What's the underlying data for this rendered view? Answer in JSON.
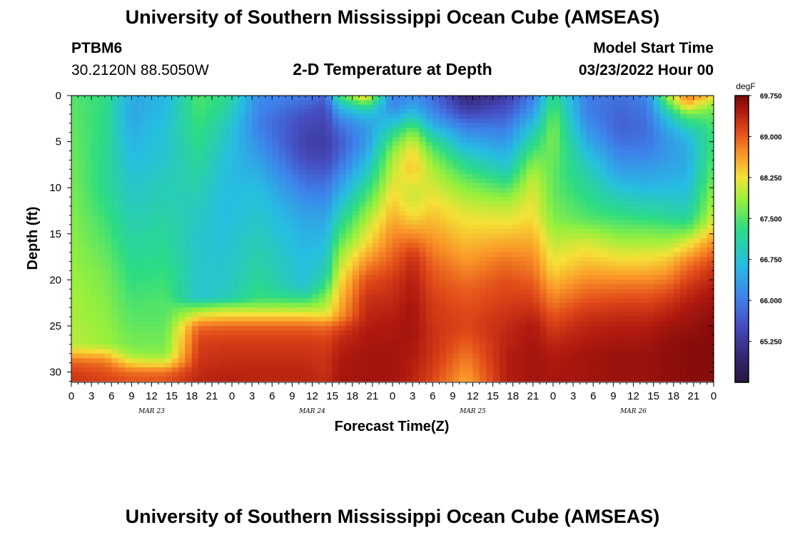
{
  "titles": {
    "main": "University of Southern Mississippi Ocean Cube (AMSEAS)",
    "repeat": "University of Southern Mississippi Ocean Cube (AMSEAS)"
  },
  "station": {
    "id": "PTBM6",
    "coords": "30.2120N  88.5050W"
  },
  "plot_title": "2-D Temperature at Depth",
  "model_start": {
    "label": "Model Start Time",
    "value": "03/23/2022 Hour 00"
  },
  "chart_data": {
    "type": "heatmap",
    "title": "2-D Temperature at Depth",
    "xlabel": "Forecast Time(Z)",
    "ylabel": "Depth (ft)",
    "x_hours": [
      0,
      96
    ],
    "x_tick_labels": [
      "0",
      "3",
      "6",
      "9",
      "12",
      "15",
      "18",
      "21",
      "0",
      "3",
      "6",
      "9",
      "12",
      "15",
      "18",
      "21",
      "0",
      "3",
      "6",
      "9",
      "12",
      "15",
      "18",
      "21",
      "0",
      "3",
      "6",
      "9",
      "12",
      "15",
      "18",
      "21",
      "0"
    ],
    "date_labels": [
      {
        "label": "MAR 23",
        "hour": 12
      },
      {
        "label": "MAR 24",
        "hour": 36
      },
      {
        "label": "MAR 25",
        "hour": 60
      },
      {
        "label": "MAR 26",
        "hour": 84
      }
    ],
    "ylim": [
      0,
      31
    ],
    "y_ticks": [
      0,
      5,
      10,
      15,
      20,
      25,
      30
    ],
    "colorbar": {
      "unit": "degF",
      "range": [
        64.5,
        69.75
      ],
      "tick_values": [
        69.75,
        69.0,
        68.25,
        67.5,
        66.75,
        66.0,
        65.25
      ],
      "tick_labels": [
        "69.750",
        "69.000",
        "68.250",
        "67.500",
        "66.750",
        "66.000",
        "65.250"
      ]
    },
    "depth_levels_ft": [
      0,
      1,
      2,
      3,
      4,
      5,
      6,
      7,
      8,
      9,
      10,
      11,
      12,
      13,
      14,
      15,
      16,
      17,
      18,
      19,
      20,
      21,
      22,
      23,
      24,
      25,
      26,
      27,
      28,
      29,
      30,
      31
    ],
    "profiles": [
      {
        "hour": 0,
        "temps": [
          67.5,
          67.55,
          67.6,
          67.6,
          67.62,
          67.65,
          67.65,
          67.68,
          67.7,
          67.7,
          67.72,
          67.75,
          67.75,
          67.78,
          67.8,
          67.8,
          67.82,
          67.85,
          67.85,
          67.88,
          67.9,
          67.9,
          67.92,
          67.95,
          67.95,
          67.98,
          68.0,
          68.0,
          68.5,
          69.0,
          69.2,
          69.3
        ]
      },
      {
        "hour": 5,
        "temps": [
          67.35,
          67.35,
          67.3,
          67.3,
          67.3,
          67.28,
          67.25,
          67.25,
          67.25,
          67.25,
          67.25,
          67.3,
          67.35,
          67.4,
          67.45,
          67.5,
          67.55,
          67.6,
          67.65,
          67.7,
          67.72,
          67.75,
          67.78,
          67.8,
          67.82,
          67.85,
          67.88,
          67.9,
          68.4,
          68.9,
          69.1,
          69.2
        ]
      },
      {
        "hour": 9,
        "temps": [
          66.5,
          66.45,
          66.45,
          66.5,
          66.55,
          66.6,
          66.65,
          66.7,
          66.75,
          66.8,
          66.85,
          66.9,
          66.95,
          67.0,
          67.05,
          67.1,
          67.15,
          67.2,
          67.25,
          67.3,
          67.35,
          67.4,
          67.45,
          67.5,
          67.55,
          67.6,
          67.65,
          67.7,
          67.85,
          68.3,
          68.9,
          69.1
        ]
      },
      {
        "hour": 14,
        "temps": [
          66.6,
          66.65,
          66.7,
          66.75,
          66.8,
          66.8,
          66.82,
          66.85,
          66.9,
          66.95,
          67.0,
          67.0,
          67.05,
          67.1,
          67.15,
          67.2,
          67.2,
          67.25,
          67.3,
          67.35,
          67.4,
          67.45,
          67.5,
          67.55,
          67.55,
          67.6,
          67.65,
          67.7,
          67.8,
          68.2,
          68.9,
          69.1
        ]
      },
      {
        "hour": 19,
        "temps": [
          67.5,
          67.5,
          67.45,
          67.4,
          67.35,
          67.3,
          67.25,
          67.2,
          67.15,
          67.1,
          67.05,
          67.0,
          66.95,
          66.9,
          66.9,
          66.85,
          66.85,
          66.85,
          66.85,
          66.85,
          66.85,
          66.85,
          66.85,
          67.7,
          68.3,
          68.9,
          69.1,
          69.2,
          69.25,
          69.3,
          69.35,
          69.4
        ]
      },
      {
        "hour": 23,
        "temps": [
          67.3,
          67.2,
          67.1,
          67.0,
          66.9,
          66.85,
          66.8,
          66.75,
          66.72,
          66.7,
          66.7,
          66.7,
          66.7,
          66.7,
          66.72,
          66.75,
          66.78,
          66.8,
          66.82,
          66.85,
          66.88,
          66.9,
          66.95,
          67.9,
          68.4,
          68.95,
          69.15,
          69.25,
          69.3,
          69.35,
          69.4,
          69.45
        ]
      },
      {
        "hour": 28,
        "temps": [
          66.2,
          66.15,
          66.1,
          66.05,
          66.1,
          66.2,
          66.3,
          66.4,
          66.5,
          66.6,
          66.7,
          66.75,
          66.8,
          66.85,
          66.9,
          66.95,
          67.0,
          67.05,
          67.1,
          67.15,
          67.2,
          67.3,
          67.4,
          67.9,
          68.4,
          68.95,
          69.15,
          69.25,
          69.3,
          69.35,
          69.4,
          69.4
        ]
      },
      {
        "hour": 35,
        "temps": [
          66.0,
          65.8,
          65.6,
          65.5,
          65.45,
          65.4,
          65.45,
          65.55,
          65.7,
          65.85,
          66.0,
          66.15,
          66.3,
          66.4,
          66.5,
          66.55,
          66.6,
          66.65,
          66.7,
          66.72,
          66.75,
          66.9,
          67.3,
          67.9,
          68.4,
          68.95,
          69.15,
          69.25,
          69.3,
          69.35,
          69.4,
          69.4
        ]
      },
      {
        "hour": 38,
        "temps": [
          65.8,
          65.6,
          65.5,
          65.45,
          65.4,
          65.35,
          65.4,
          65.5,
          65.65,
          65.8,
          65.95,
          66.1,
          66.25,
          66.4,
          66.5,
          66.6,
          66.7,
          66.8,
          66.9,
          67.0,
          67.2,
          67.5,
          67.8,
          68.0,
          68.3,
          68.9,
          69.1,
          69.2,
          69.25,
          69.3,
          69.3,
          69.35
        ]
      },
      {
        "hour": 40,
        "temps": [
          67.4,
          66.8,
          66.3,
          66.0,
          65.8,
          65.7,
          65.75,
          65.85,
          66.0,
          66.2,
          66.4,
          66.6,
          66.8,
          67.0,
          67.2,
          67.4,
          67.6,
          67.8,
          67.95,
          68.1,
          68.25,
          68.35,
          68.45,
          68.55,
          68.7,
          69.1,
          69.3,
          69.4,
          69.45,
          69.5,
          69.5,
          69.55
        ]
      },
      {
        "hour": 44,
        "temps": [
          68.5,
          67.5,
          66.8,
          66.4,
          66.3,
          66.3,
          66.4,
          66.6,
          66.8,
          67.0,
          67.25,
          67.45,
          67.65,
          67.85,
          68.0,
          68.15,
          68.3,
          68.5,
          68.7,
          68.9,
          69.1,
          69.2,
          69.3,
          69.35,
          69.4,
          69.45,
          69.5,
          69.5,
          69.55,
          69.55,
          69.55,
          69.55
        ]
      },
      {
        "hour": 48,
        "temps": [
          66.0,
          66.1,
          66.4,
          66.8,
          67.2,
          67.55,
          67.8,
          67.95,
          68.05,
          68.15,
          68.25,
          68.35,
          68.45,
          68.55,
          68.65,
          68.75,
          68.85,
          68.95,
          69.05,
          69.15,
          69.25,
          69.3,
          69.35,
          69.4,
          69.45,
          69.5,
          69.5,
          69.55,
          69.55,
          69.55,
          69.55,
          69.55
        ]
      },
      {
        "hour": 51,
        "temps": [
          66.2,
          66.4,
          66.8,
          67.3,
          67.8,
          68.1,
          68.3,
          68.4,
          68.45,
          68.3,
          68.15,
          68.1,
          68.15,
          68.3,
          68.5,
          68.75,
          69.0,
          69.2,
          69.35,
          69.4,
          69.45,
          69.5,
          69.5,
          69.55,
          69.55,
          69.55,
          69.55,
          69.5,
          69.5,
          69.45,
          69.45,
          69.4
        ]
      },
      {
        "hour": 54,
        "temps": [
          65.9,
          66.0,
          66.2,
          66.5,
          66.9,
          67.3,
          67.6,
          67.8,
          67.95,
          68.05,
          68.15,
          68.25,
          68.35,
          68.45,
          68.55,
          68.65,
          68.75,
          68.85,
          68.95,
          69.05,
          69.1,
          69.15,
          69.2,
          69.25,
          69.25,
          69.3,
          69.3,
          69.3,
          69.3,
          69.25,
          69.2,
          69.15
        ]
      },
      {
        "hour": 59,
        "temps": [
          65.0,
          65.2,
          65.5,
          65.9,
          66.2,
          66.5,
          66.8,
          67.1,
          67.35,
          67.6,
          67.8,
          67.95,
          68.1,
          68.2,
          68.3,
          68.4,
          68.5,
          68.6,
          68.7,
          68.8,
          68.9,
          69.0,
          69.05,
          69.1,
          69.15,
          69.15,
          69.1,
          69.0,
          68.9,
          68.8,
          68.7,
          68.6
        ]
      },
      {
        "hour": 65,
        "temps": [
          65.3,
          65.5,
          65.7,
          65.9,
          66.1,
          66.3,
          66.5,
          66.7,
          66.9,
          67.2,
          67.5,
          67.8,
          68.0,
          68.15,
          68.3,
          68.45,
          68.6,
          68.75,
          68.9,
          69.0,
          69.1,
          69.15,
          69.2,
          69.25,
          69.3,
          69.35,
          69.4,
          69.4,
          69.45,
          69.45,
          69.45,
          69.45
        ]
      },
      {
        "hour": 69,
        "temps": [
          66.0,
          66.2,
          66.4,
          66.7,
          66.95,
          67.2,
          67.45,
          67.7,
          67.9,
          68.05,
          68.15,
          68.2,
          68.25,
          68.3,
          68.4,
          68.5,
          68.6,
          68.7,
          68.8,
          68.9,
          69.0,
          69.1,
          69.2,
          69.3,
          69.4,
          69.5,
          69.5,
          69.55,
          69.55,
          69.55,
          69.55,
          69.55
        ]
      },
      {
        "hour": 72,
        "temps": [
          67.3,
          67.45,
          67.6,
          67.7,
          67.75,
          67.75,
          67.7,
          67.65,
          67.6,
          67.6,
          67.62,
          67.65,
          67.7,
          67.75,
          67.85,
          67.95,
          68.05,
          68.15,
          68.25,
          68.35,
          68.5,
          68.65,
          68.8,
          68.95,
          69.1,
          69.2,
          69.3,
          69.4,
          69.45,
          69.5,
          69.5,
          69.55
        ]
      },
      {
        "hour": 77,
        "temps": [
          66.0,
          66.05,
          66.1,
          66.2,
          66.35,
          66.5,
          66.7,
          66.85,
          67.0,
          67.1,
          67.2,
          67.3,
          67.4,
          67.5,
          67.7,
          67.95,
          68.15,
          68.3,
          68.45,
          68.6,
          68.75,
          68.9,
          69.05,
          69.2,
          69.3,
          69.4,
          69.45,
          69.5,
          69.55,
          69.55,
          69.55,
          69.55
        ]
      },
      {
        "hour": 82,
        "temps": [
          65.9,
          65.85,
          65.8,
          65.75,
          65.8,
          65.9,
          66.05,
          66.2,
          66.35,
          66.55,
          66.75,
          66.95,
          67.15,
          67.35,
          67.55,
          67.75,
          67.95,
          68.15,
          68.35,
          68.55,
          68.75,
          68.95,
          69.1,
          69.25,
          69.35,
          69.45,
          69.5,
          69.55,
          69.6,
          69.6,
          69.6,
          69.6
        ]
      },
      {
        "hour": 86,
        "temps": [
          66.1,
          66.0,
          65.95,
          65.9,
          65.9,
          65.95,
          66.05,
          66.2,
          66.35,
          66.5,
          66.65,
          66.85,
          67.05,
          67.25,
          67.5,
          67.75,
          67.95,
          68.15,
          68.35,
          68.55,
          68.75,
          68.95,
          69.1,
          69.25,
          69.35,
          69.45,
          69.5,
          69.55,
          69.6,
          69.6,
          69.6,
          69.6
        ]
      },
      {
        "hour": 89,
        "temps": [
          67.9,
          67.4,
          66.9,
          66.6,
          66.4,
          66.3,
          66.3,
          66.35,
          66.45,
          66.55,
          66.7,
          66.85,
          67.0,
          67.2,
          67.45,
          67.7,
          67.95,
          68.2,
          68.45,
          68.65,
          68.85,
          69.05,
          69.2,
          69.35,
          69.45,
          69.55,
          69.6,
          69.65,
          69.65,
          69.65,
          69.65,
          69.65
        ]
      },
      {
        "hour": 92,
        "temps": [
          68.85,
          68.5,
          67.7,
          67.2,
          66.8,
          66.6,
          66.5,
          66.5,
          66.55,
          66.6,
          66.7,
          66.8,
          66.95,
          67.1,
          67.4,
          67.8,
          68.2,
          68.5,
          68.8,
          69.0,
          69.15,
          69.3,
          69.4,
          69.5,
          69.55,
          69.6,
          69.65,
          69.7,
          69.7,
          69.7,
          69.7,
          69.7
        ]
      },
      {
        "hour": 96,
        "temps": [
          68.4,
          67.8,
          67.6,
          67.5,
          67.45,
          67.45,
          67.5,
          67.55,
          67.6,
          67.7,
          67.8,
          67.9,
          68.0,
          68.1,
          68.25,
          68.5,
          68.75,
          68.95,
          69.15,
          69.3,
          69.4,
          69.5,
          69.55,
          69.6,
          69.65,
          69.7,
          69.7,
          69.7,
          69.7,
          69.7,
          69.7,
          69.7
        ]
      }
    ]
  }
}
